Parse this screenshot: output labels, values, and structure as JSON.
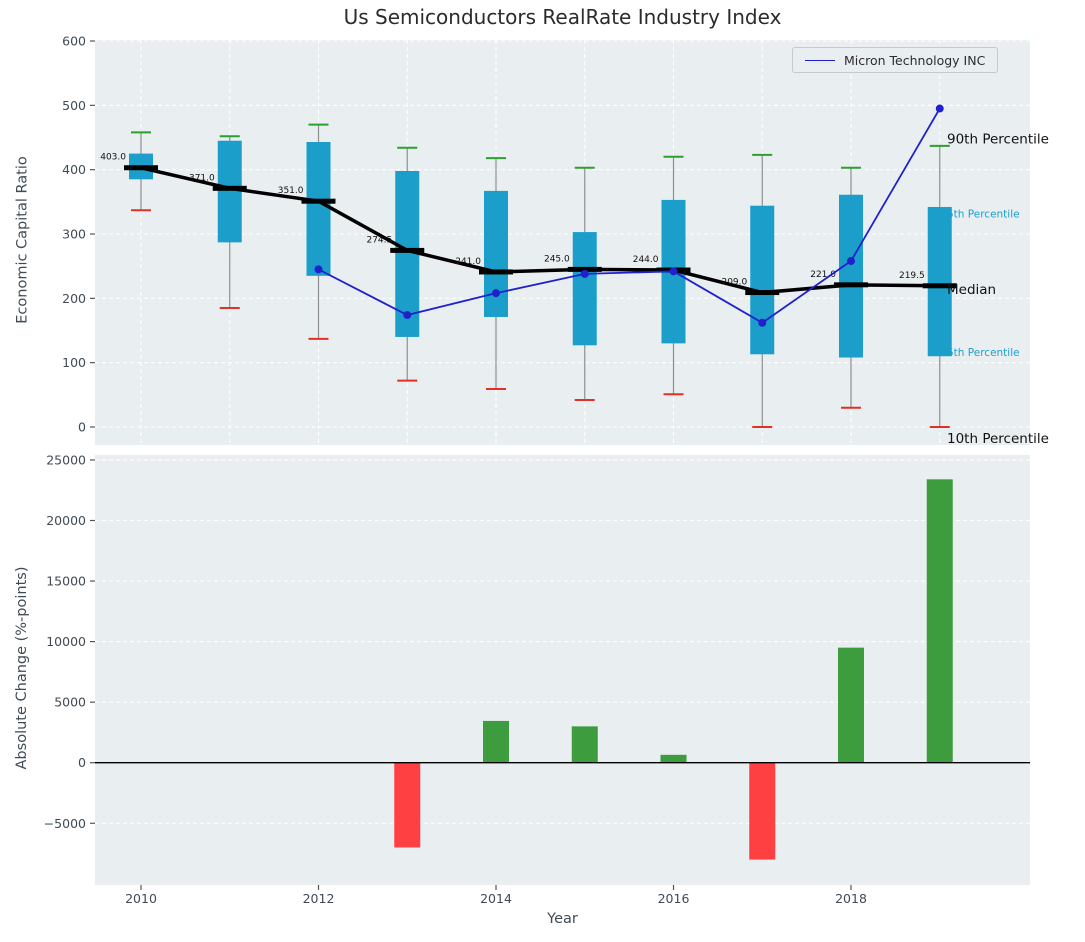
{
  "title": "Us Semiconductors RealRate Industry Index",
  "legend": {
    "label": "Micron Technology INC"
  },
  "colors": {
    "background": "#e9eef0",
    "box": "#1b9fca",
    "whisker": "#8f8f8f",
    "cap_high": "#2ca02c",
    "cap_low": "#e33027",
    "median": "#000000",
    "micron_line": "#2020cc",
    "bar_positive": "#3d9c3d",
    "bar_negative": "#ff4043",
    "annotation_percentile": "#1ba0cb",
    "tick_text": "#3f4b54"
  },
  "chart_data": [
    {
      "type": "boxplot",
      "title": "Us Semiconductors RealRate Industry Index",
      "ylabel": "Economic Capital Ratio",
      "ylim": [
        0,
        600
      ],
      "yticks": [
        0,
        100,
        200,
        300,
        400,
        500,
        600
      ],
      "grid": true,
      "years": [
        2010,
        2011,
        2012,
        2013,
        2014,
        2015,
        2016,
        2017,
        2018,
        2019
      ],
      "p90": [
        458,
        452,
        470,
        434,
        418,
        403,
        420,
        423,
        403,
        437
      ],
      "p75": [
        425,
        445,
        443,
        398,
        367,
        303,
        353,
        344,
        361,
        342
      ],
      "median": [
        403.0,
        371.0,
        351.0,
        274.5,
        241.0,
        245.0,
        244.0,
        209.0,
        221.0,
        219.5
      ],
      "p25": [
        385,
        287,
        235,
        140,
        171,
        127,
        130,
        113,
        108,
        110
      ],
      "p10": [
        337,
        185,
        137,
        72,
        59,
        42,
        51,
        0,
        30,
        0
      ],
      "median_labels": [
        "403.0",
        "371.0",
        "351.0",
        "274.5",
        "241.0",
        "245.0",
        "244.0",
        "209.0",
        "221.0",
        "219.5"
      ],
      "series": [
        {
          "name": "Micron Technology INC",
          "x": [
            2012,
            2013,
            2014,
            2015,
            2016,
            2017,
            2018,
            2019
          ],
          "y": [
            245,
            174,
            208,
            238,
            242,
            162,
            258,
            495
          ]
        }
      ],
      "legend_position": "upper right",
      "annotations": [
        {
          "text": "90th Percentile",
          "style": "dark",
          "y_value": 448
        },
        {
          "text": "5th Percentile",
          "style": "cyan",
          "y_value": 333
        },
        {
          "text": "Median",
          "style": "dark",
          "y_value": 214
        },
        {
          "text": "5th Percentile",
          "style": "cyan",
          "y_value": 117
        },
        {
          "text": "10th Percentile",
          "style": "dark",
          "y_value": -18
        }
      ]
    },
    {
      "type": "bar",
      "ylabel": "Absolute Change (%-points)",
      "xlabel": "Year",
      "ylim": [
        -10100,
        25400
      ],
      "yticks": [
        -5000,
        0,
        5000,
        10000,
        15000,
        20000,
        25000
      ],
      "xticks": [
        2010,
        2012,
        2014,
        2016,
        2018
      ],
      "grid": true,
      "x": [
        2013,
        2014,
        2015,
        2016,
        2017,
        2018,
        2019
      ],
      "values": [
        -7000,
        3450,
        3000,
        650,
        -8000,
        9500,
        23400
      ]
    }
  ]
}
